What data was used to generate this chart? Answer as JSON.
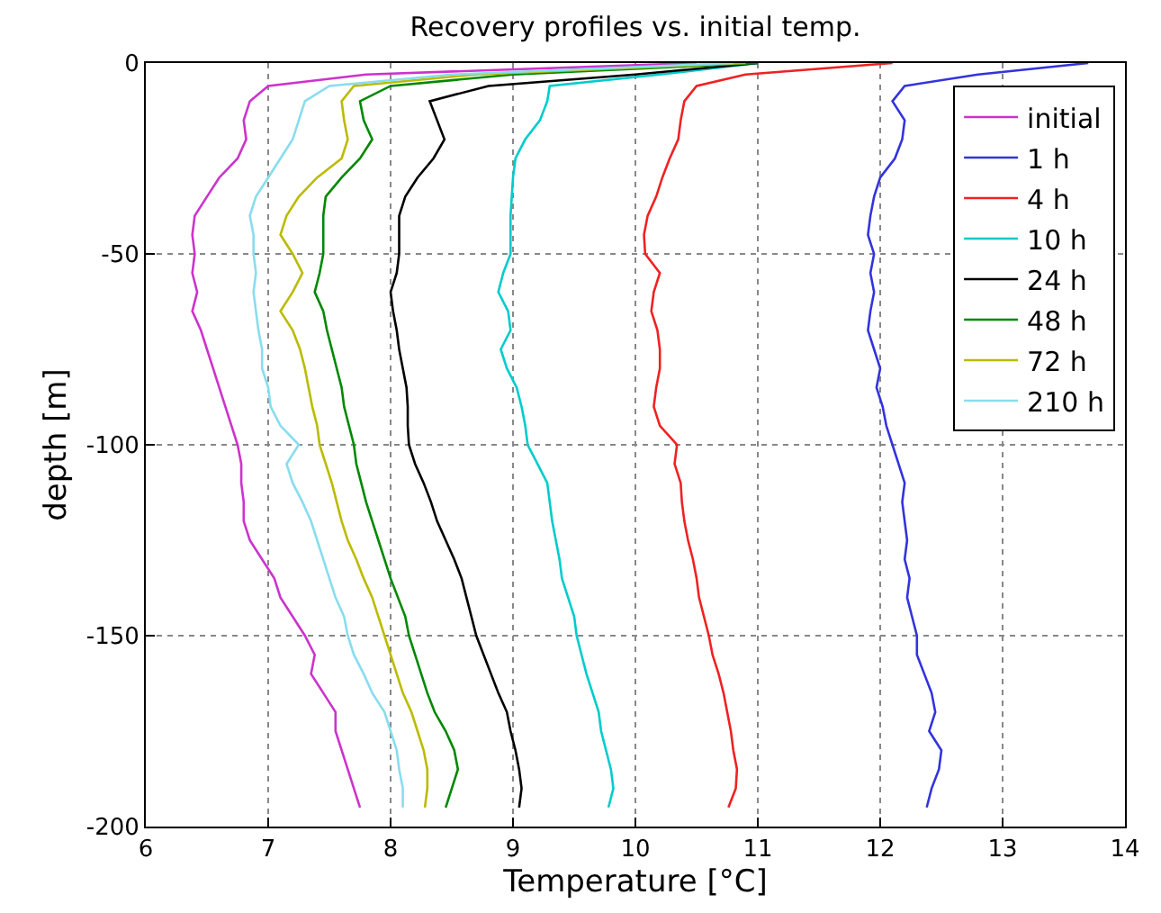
{
  "chart_data": {
    "type": "line",
    "title": "Recovery profiles vs. initial temp.",
    "xlabel": "Temperature [°C]",
    "ylabel": "depth [m]",
    "xlim": [
      6,
      14
    ],
    "xticks": [
      6,
      7,
      8,
      9,
      10,
      11,
      12,
      13,
      14
    ],
    "ylim": [
      -200,
      0
    ],
    "yticks": [
      -200,
      -150,
      -100,
      -50,
      0
    ],
    "grid": true,
    "legend": "top right",
    "marker": "none",
    "line_style": "solid",
    "series": [
      {
        "name": "initial",
        "color": "#cc33cc",
        "x": [
          10.5,
          7.8,
          7.0,
          6.85,
          6.8,
          6.82,
          6.75,
          6.6,
          6.5,
          6.4,
          6.38,
          6.4,
          6.38,
          6.42,
          6.38,
          6.45,
          6.5,
          6.55,
          6.6,
          6.65,
          6.7,
          6.75,
          6.78,
          6.78,
          6.8,
          6.8,
          6.85,
          6.95,
          7.05,
          7.1,
          7.2,
          7.3,
          7.38,
          7.35,
          7.45,
          7.55,
          7.55,
          7.6,
          7.65,
          7.7,
          7.75
        ],
        "values": [
          0,
          -3,
          -6,
          -10,
          -15,
          -20,
          -25,
          -30,
          -35,
          -40,
          -45,
          -50,
          -55,
          -60,
          -65,
          -70,
          -75,
          -80,
          -85,
          -90,
          -95,
          -100,
          -105,
          -110,
          -115,
          -120,
          -125,
          -130,
          -135,
          -140,
          -145,
          -150,
          -155,
          -160,
          -165,
          -170,
          -175,
          -180,
          -185,
          -190,
          -195
        ]
      },
      {
        "name": "1 h",
        "color": "#3333dd",
        "x": [
          13.7,
          12.8,
          12.2,
          12.1,
          12.2,
          12.18,
          12.12,
          12.0,
          11.95,
          11.92,
          11.9,
          11.95,
          11.92,
          11.95,
          11.92,
          11.9,
          11.95,
          12.0,
          11.97,
          12.02,
          12.05,
          12.1,
          12.15,
          12.2,
          12.18,
          12.2,
          12.22,
          12.2,
          12.24,
          12.22,
          12.26,
          12.3,
          12.3,
          12.36,
          12.42,
          12.45,
          12.4,
          12.5,
          12.48,
          12.42,
          12.38
        ],
        "values": [
          0,
          -3,
          -6,
          -10,
          -15,
          -20,
          -25,
          -30,
          -35,
          -40,
          -45,
          -50,
          -55,
          -60,
          -65,
          -70,
          -75,
          -80,
          -85,
          -90,
          -95,
          -100,
          -105,
          -110,
          -115,
          -120,
          -125,
          -130,
          -135,
          -140,
          -145,
          -150,
          -155,
          -160,
          -165,
          -170,
          -175,
          -180,
          -185,
          -190,
          -195
        ]
      },
      {
        "name": "4 h",
        "color": "#ee2222",
        "x": [
          12.1,
          10.9,
          10.5,
          10.4,
          10.37,
          10.35,
          10.28,
          10.22,
          10.17,
          10.1,
          10.07,
          10.08,
          10.2,
          10.15,
          10.13,
          10.18,
          10.2,
          10.2,
          10.17,
          10.15,
          10.2,
          10.34,
          10.32,
          10.37,
          10.38,
          10.4,
          10.43,
          10.47,
          10.5,
          10.52,
          10.56,
          10.6,
          10.63,
          10.68,
          10.72,
          10.75,
          10.78,
          10.8,
          10.83,
          10.82,
          10.76
        ],
        "values": [
          0,
          -3,
          -6,
          -10,
          -15,
          -20,
          -25,
          -30,
          -35,
          -40,
          -45,
          -50,
          -55,
          -60,
          -65,
          -70,
          -75,
          -80,
          -85,
          -90,
          -95,
          -100,
          -105,
          -110,
          -115,
          -120,
          -125,
          -130,
          -135,
          -140,
          -145,
          -150,
          -155,
          -160,
          -165,
          -170,
          -175,
          -180,
          -185,
          -190,
          -195
        ]
      },
      {
        "name": "10 h",
        "color": "#00cccc",
        "x": [
          11.0,
          10.2,
          9.3,
          9.28,
          9.22,
          9.1,
          9.02,
          9.0,
          8.99,
          8.98,
          8.98,
          8.98,
          8.92,
          8.88,
          8.96,
          8.98,
          8.9,
          8.95,
          9.03,
          9.07,
          9.1,
          9.12,
          9.2,
          9.28,
          9.3,
          9.32,
          9.35,
          9.38,
          9.4,
          9.45,
          9.5,
          9.52,
          9.56,
          9.6,
          9.65,
          9.7,
          9.72,
          9.76,
          9.8,
          9.82,
          9.78
        ],
        "values": [
          0,
          -3,
          -6,
          -10,
          -15,
          -20,
          -25,
          -30,
          -35,
          -40,
          -45,
          -50,
          -55,
          -60,
          -65,
          -70,
          -75,
          -80,
          -85,
          -90,
          -95,
          -100,
          -105,
          -110,
          -115,
          -120,
          -125,
          -130,
          -135,
          -140,
          -145,
          -150,
          -155,
          -160,
          -165,
          -170,
          -175,
          -180,
          -185,
          -190,
          -195
        ]
      },
      {
        "name": "24 h",
        "color": "#000000",
        "x": [
          11.0,
          10.0,
          8.8,
          8.32,
          8.38,
          8.44,
          8.35,
          8.22,
          8.12,
          8.07,
          8.07,
          8.07,
          8.05,
          8.0,
          8.02,
          8.05,
          8.07,
          8.1,
          8.13,
          8.14,
          8.14,
          8.15,
          8.2,
          8.27,
          8.33,
          8.38,
          8.45,
          8.52,
          8.58,
          8.62,
          8.66,
          8.7,
          8.76,
          8.82,
          8.88,
          8.95,
          8.98,
          9.02,
          9.05,
          9.07,
          9.05
        ],
        "values": [
          0,
          -3,
          -6,
          -10,
          -15,
          -20,
          -25,
          -30,
          -35,
          -40,
          -45,
          -50,
          -55,
          -60,
          -65,
          -70,
          -75,
          -80,
          -85,
          -90,
          -95,
          -100,
          -105,
          -110,
          -115,
          -120,
          -125,
          -130,
          -135,
          -140,
          -145,
          -150,
          -155,
          -160,
          -165,
          -170,
          -175,
          -180,
          -185,
          -190,
          -195
        ]
      },
      {
        "name": "48 h",
        "color": "#008800",
        "x": [
          11.0,
          9.0,
          8.0,
          7.75,
          7.78,
          7.85,
          7.75,
          7.6,
          7.47,
          7.45,
          7.45,
          7.45,
          7.42,
          7.38,
          7.45,
          7.48,
          7.52,
          7.56,
          7.6,
          7.62,
          7.66,
          7.7,
          7.72,
          7.76,
          7.8,
          7.85,
          7.9,
          7.95,
          8.0,
          8.06,
          8.12,
          8.15,
          8.2,
          8.25,
          8.3,
          8.36,
          8.45,
          8.52,
          8.55,
          8.5,
          8.45
        ],
        "values": [
          0,
          -3,
          -6,
          -10,
          -15,
          -20,
          -25,
          -30,
          -35,
          -40,
          -45,
          -50,
          -55,
          -60,
          -65,
          -70,
          -75,
          -80,
          -85,
          -90,
          -95,
          -100,
          -105,
          -110,
          -115,
          -120,
          -125,
          -130,
          -135,
          -140,
          -145,
          -150,
          -155,
          -160,
          -165,
          -170,
          -175,
          -180,
          -185,
          -190,
          -195
        ]
      },
      {
        "name": "72 h",
        "color": "#bbbb00",
        "x": [
          10.9,
          8.7,
          7.7,
          7.6,
          7.62,
          7.65,
          7.6,
          7.4,
          7.25,
          7.15,
          7.1,
          7.2,
          7.28,
          7.2,
          7.1,
          7.2,
          7.26,
          7.3,
          7.33,
          7.36,
          7.4,
          7.42,
          7.47,
          7.52,
          7.56,
          7.6,
          7.65,
          7.72,
          7.78,
          7.85,
          7.9,
          7.95,
          8.0,
          8.05,
          8.1,
          8.17,
          8.22,
          8.27,
          8.3,
          8.3,
          8.28
        ],
        "values": [
          0,
          -3,
          -6,
          -10,
          -15,
          -20,
          -25,
          -30,
          -35,
          -40,
          -45,
          -50,
          -55,
          -60,
          -65,
          -70,
          -75,
          -80,
          -85,
          -90,
          -95,
          -100,
          -105,
          -110,
          -115,
          -120,
          -125,
          -130,
          -135,
          -140,
          -145,
          -150,
          -155,
          -160,
          -165,
          -170,
          -175,
          -180,
          -185,
          -190,
          -195
        ]
      },
      {
        "name": "210 h",
        "color": "#88ddee",
        "x": [
          10.8,
          8.5,
          7.5,
          7.3,
          7.25,
          7.2,
          7.1,
          7.0,
          6.9,
          6.85,
          6.88,
          6.88,
          6.9,
          6.88,
          6.9,
          6.92,
          6.95,
          6.95,
          7.0,
          7.02,
          7.1,
          7.25,
          7.15,
          7.2,
          7.28,
          7.35,
          7.4,
          7.45,
          7.5,
          7.55,
          7.62,
          7.65,
          7.7,
          7.78,
          7.85,
          7.95,
          8.0,
          8.05,
          8.07,
          8.1,
          8.1
        ],
        "values": [
          0,
          -3,
          -6,
          -10,
          -15,
          -20,
          -25,
          -30,
          -35,
          -40,
          -45,
          -50,
          -55,
          -60,
          -65,
          -70,
          -75,
          -80,
          -85,
          -90,
          -95,
          -100,
          -105,
          -110,
          -115,
          -120,
          -125,
          -130,
          -135,
          -140,
          -145,
          -150,
          -155,
          -160,
          -165,
          -170,
          -175,
          -180,
          -185,
          -190,
          -195
        ]
      }
    ]
  }
}
